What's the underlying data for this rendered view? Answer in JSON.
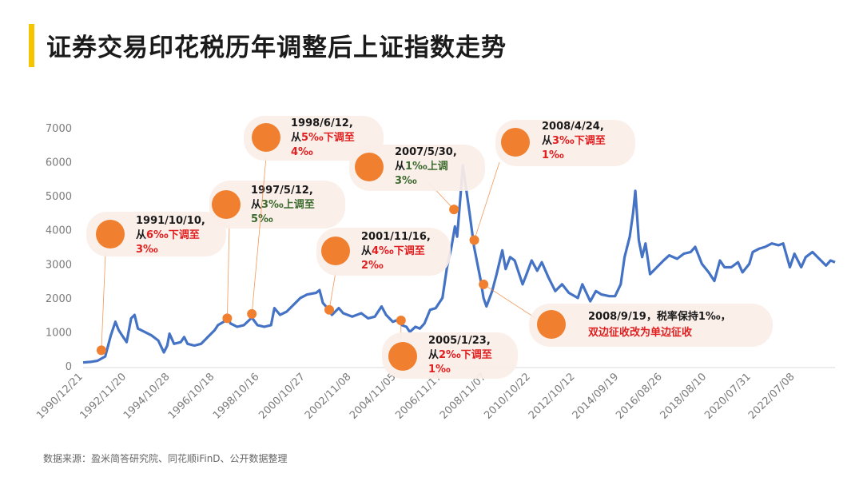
{
  "title": "证券交易印花税历年调整后上证指数走势",
  "source": "数据来源：盈米简答研究院、同花顺iFinD、公开数据整理",
  "colors": {
    "line": "#4472c4",
    "accent": "#f08030",
    "red": "#e02020",
    "green": "#3d6b2f",
    "black": "#1a1a1a",
    "bubble": "#fbeee8"
  },
  "chart_data": {
    "type": "line",
    "title": "证券交易印花税历年调整后上证指数走势",
    "xlabel": "",
    "ylabel": "",
    "ylim": [
      0,
      7000
    ],
    "yticks": [
      "0",
      "1000",
      "2000",
      "3000",
      "4000",
      "5000",
      "6000",
      "7000"
    ],
    "xlim": [
      1990.97,
      2024.3
    ],
    "xticks": [
      {
        "label": "1990/12/21",
        "x": 1990.97
      },
      {
        "label": "1992/11/20",
        "x": 1992.89
      },
      {
        "label": "1994/10/28",
        "x": 1994.82
      },
      {
        "label": "1996/10/18",
        "x": 1996.8
      },
      {
        "label": "1998/10/16",
        "x": 1998.79
      },
      {
        "label": "2000/10/27",
        "x": 2000.82
      },
      {
        "label": "2002/11/08",
        "x": 2002.86
      },
      {
        "label": "2004/11/05",
        "x": 2004.85
      },
      {
        "label": "2006/11/17",
        "x": 2006.88
      },
      {
        "label": "2008/11/07",
        "x": 2008.85
      },
      {
        "label": "2010/10/22",
        "x": 2010.81
      },
      {
        "label": "2012/10/12",
        "x": 2012.78
      },
      {
        "label": "2014/09/19",
        "x": 2014.72
      },
      {
        "label": "2016/08/26",
        "x": 2016.65
      },
      {
        "label": "2018/08/10",
        "x": 2018.61
      },
      {
        "label": "2020/07/31",
        "x": 2020.58
      },
      {
        "label": "2022/07/08",
        "x": 2022.52
      }
    ],
    "series": [
      {
        "name": "上证指数",
        "points": [
          [
            1990.97,
            100
          ],
          [
            1991.3,
            120
          ],
          [
            1991.6,
            150
          ],
          [
            1991.95,
            280
          ],
          [
            1992.2,
            900
          ],
          [
            1992.4,
            1300
          ],
          [
            1992.55,
            1050
          ],
          [
            1992.7,
            900
          ],
          [
            1992.9,
            700
          ],
          [
            1993.1,
            1400
          ],
          [
            1993.25,
            1500
          ],
          [
            1993.4,
            1100
          ],
          [
            1993.7,
            1000
          ],
          [
            1994.0,
            900
          ],
          [
            1994.3,
            750
          ],
          [
            1994.55,
            400
          ],
          [
            1994.7,
            600
          ],
          [
            1994.8,
            950
          ],
          [
            1995.0,
            650
          ],
          [
            1995.3,
            700
          ],
          [
            1995.45,
            850
          ],
          [
            1995.6,
            650
          ],
          [
            1995.9,
            600
          ],
          [
            1996.2,
            650
          ],
          [
            1996.5,
            850
          ],
          [
            1996.8,
            1050
          ],
          [
            1996.95,
            1200
          ],
          [
            1997.2,
            1300
          ],
          [
            1997.38,
            1450
          ],
          [
            1997.5,
            1250
          ],
          [
            1997.8,
            1150
          ],
          [
            1998.1,
            1200
          ],
          [
            1998.45,
            1420
          ],
          [
            1998.7,
            1200
          ],
          [
            1999.0,
            1150
          ],
          [
            1999.3,
            1200
          ],
          [
            1999.45,
            1700
          ],
          [
            1999.7,
            1500
          ],
          [
            2000.0,
            1600
          ],
          [
            2000.3,
            1800
          ],
          [
            2000.6,
            2000
          ],
          [
            2000.9,
            2100
          ],
          [
            2001.3,
            2150
          ],
          [
            2001.45,
            2230
          ],
          [
            2001.6,
            1850
          ],
          [
            2001.8,
            1700
          ],
          [
            2002.0,
            1500
          ],
          [
            2002.3,
            1700
          ],
          [
            2002.5,
            1550
          ],
          [
            2002.9,
            1450
          ],
          [
            2003.3,
            1550
          ],
          [
            2003.6,
            1400
          ],
          [
            2003.9,
            1450
          ],
          [
            2004.2,
            1750
          ],
          [
            2004.4,
            1500
          ],
          [
            2004.7,
            1300
          ],
          [
            2004.9,
            1350
          ],
          [
            2005.1,
            1200
          ],
          [
            2005.3,
            1150
          ],
          [
            2005.45,
            1000
          ],
          [
            2005.7,
            1150
          ],
          [
            2005.9,
            1100
          ],
          [
            2006.1,
            1250
          ],
          [
            2006.35,
            1650
          ],
          [
            2006.6,
            1700
          ],
          [
            2006.9,
            2000
          ],
          [
            2007.1,
            2900
          ],
          [
            2007.3,
            3500
          ],
          [
            2007.45,
            4100
          ],
          [
            2007.55,
            3800
          ],
          [
            2007.7,
            5000
          ],
          [
            2007.8,
            5900
          ],
          [
            2007.95,
            5200
          ],
          [
            2008.1,
            4500
          ],
          [
            2008.3,
            3500
          ],
          [
            2008.45,
            3000
          ],
          [
            2008.6,
            2500
          ],
          [
            2008.72,
            2000
          ],
          [
            2008.85,
            1750
          ],
          [
            2009.1,
            2200
          ],
          [
            2009.3,
            2700
          ],
          [
            2009.55,
            3400
          ],
          [
            2009.7,
            2850
          ],
          [
            2009.9,
            3200
          ],
          [
            2010.1,
            3100
          ],
          [
            2010.45,
            2400
          ],
          [
            2010.6,
            2650
          ],
          [
            2010.85,
            3100
          ],
          [
            2011.1,
            2800
          ],
          [
            2011.3,
            3050
          ],
          [
            2011.6,
            2600
          ],
          [
            2011.9,
            2200
          ],
          [
            2012.2,
            2400
          ],
          [
            2012.5,
            2150
          ],
          [
            2012.9,
            2000
          ],
          [
            2013.1,
            2400
          ],
          [
            2013.45,
            1900
          ],
          [
            2013.7,
            2200
          ],
          [
            2013.95,
            2100
          ],
          [
            2014.3,
            2050
          ],
          [
            2014.55,
            2050
          ],
          [
            2014.8,
            2400
          ],
          [
            2014.97,
            3200
          ],
          [
            2015.2,
            3800
          ],
          [
            2015.35,
            4500
          ],
          [
            2015.45,
            5150
          ],
          [
            2015.6,
            3700
          ],
          [
            2015.75,
            3200
          ],
          [
            2015.9,
            3600
          ],
          [
            2016.1,
            2700
          ],
          [
            2016.4,
            2900
          ],
          [
            2016.7,
            3100
          ],
          [
            2016.95,
            3250
          ],
          [
            2017.3,
            3150
          ],
          [
            2017.6,
            3300
          ],
          [
            2017.9,
            3350
          ],
          [
            2018.1,
            3500
          ],
          [
            2018.4,
            3000
          ],
          [
            2018.7,
            2750
          ],
          [
            2018.95,
            2500
          ],
          [
            2019.2,
            3100
          ],
          [
            2019.4,
            2900
          ],
          [
            2019.7,
            2900
          ],
          [
            2020.0,
            3050
          ],
          [
            2020.2,
            2750
          ],
          [
            2020.5,
            3000
          ],
          [
            2020.65,
            3350
          ],
          [
            2020.95,
            3450
          ],
          [
            2021.2,
            3500
          ],
          [
            2021.5,
            3600
          ],
          [
            2021.8,
            3550
          ],
          [
            2022.0,
            3600
          ],
          [
            2022.3,
            2900
          ],
          [
            2022.5,
            3300
          ],
          [
            2022.8,
            2900
          ],
          [
            2023.0,
            3200
          ],
          [
            2023.3,
            3350
          ],
          [
            2023.6,
            3150
          ],
          [
            2023.9,
            2950
          ],
          [
            2024.1,
            3100
          ],
          [
            2024.3,
            3050
          ]
        ]
      }
    ],
    "events": [
      {
        "date": "1991/10/10",
        "x": 1991.78,
        "y": 460,
        "line1": "从",
        "mid": "6‰下调至",
        "line3": "3‰",
        "color": "red"
      },
      {
        "date": "1997/5/12",
        "x": 1997.36,
        "y": 1400,
        "line1": "从",
        "mid": "3‰上调至",
        "line3": "5‰",
        "color": "green"
      },
      {
        "date": "1998/6/12",
        "x": 1998.45,
        "y": 1530,
        "line1": "从",
        "mid": "5‰下调至",
        "line3": "4‰",
        "color": "red"
      },
      {
        "date": "2001/11/16",
        "x": 2001.88,
        "y": 1650,
        "line1": "从",
        "mid": "4‰下调至",
        "line3": "2‰",
        "color": "red"
      },
      {
        "date": "2005/1/23",
        "x": 2005.06,
        "y": 1340,
        "line1": "从",
        "mid": "2‰下调至",
        "line3": "1‰",
        "color": "red"
      },
      {
        "date": "2007/5/30",
        "x": 2007.41,
        "y": 4600,
        "line1": "从",
        "mid": "1‰上调",
        "line3": "3‰",
        "color": "green"
      },
      {
        "date": "2008/4/24",
        "x": 2008.31,
        "y": 3700,
        "line1": "从",
        "mid": "3‰下调至",
        "line3": "1‰",
        "color": "red"
      },
      {
        "date": "2008/9/19",
        "x": 2008.72,
        "y": 2400,
        "line1": "2008/9/19，税率保持1‰，",
        "mid": "双边征收改为单边征收",
        "line3": "",
        "color": "red"
      }
    ]
  }
}
